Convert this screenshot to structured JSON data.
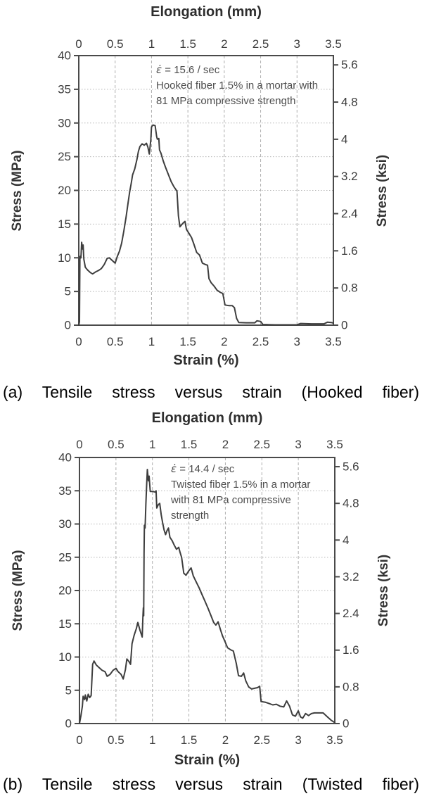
{
  "colors": {
    "background": "#ffffff",
    "curve": "#3e3e3e",
    "frame": "#4a4a4a",
    "gridline": "#b0b0b0",
    "tick_text": "#3d3d3d",
    "caption_text": "#000000"
  },
  "chart_data": [
    {
      "type": "line",
      "top_axis_title": "Elongation (mm)",
      "xlabel": "Strain (%)",
      "ylabel_left": "Stress (MPa)",
      "ylabel_right": "Stress (ksi)",
      "x_range": [
        0,
        3.5
      ],
      "y_range_mpa": [
        0,
        40
      ],
      "mpa_per_ksi": 6.8966,
      "grid": true,
      "x_tick_values": [
        0,
        0.5,
        1,
        1.5,
        2,
        2.5,
        3,
        3.5
      ],
      "x_tick_labels": [
        "0",
        "0.5",
        "1",
        "1.5",
        "2",
        "2.5",
        "3",
        "3.5"
      ],
      "y_tick_values_mpa": [
        0,
        5,
        10,
        15,
        20,
        25,
        30,
        35,
        40
      ],
      "y_tick_labels_mpa": [
        "0",
        "5",
        "10",
        "15",
        "20",
        "25",
        "30",
        "35",
        "40"
      ],
      "y_tick_values_ksi": [
        0,
        0.8,
        1.6,
        2.4,
        3.2,
        4,
        4.8,
        5.6
      ],
      "y_tick_labels_ksi": [
        "0",
        "0.8",
        "1.6",
        "2.4",
        "3.2",
        "4",
        "4.8",
        "5.6"
      ],
      "annotation": {
        "symbol": "ε̇",
        "rate": " = 15.6 / sec",
        "l1": "Hooked fiber 1.5% in a mortar with",
        "l2": "81 MPa compressive strength",
        "l3": ""
      },
      "caption": "(a) Tensile stress versus strain (Hooked fiber)",
      "series": [
        {
          "name": "hooked-fiber-stress-strain",
          "points": [
            [
              0,
              0
            ],
            [
              0.01,
              0.5
            ],
            [
              0.015,
              9.8
            ],
            [
              0.02,
              10.2
            ],
            [
              0.03,
              10
            ],
            [
              0.04,
              12.3
            ],
            [
              0.05,
              11.3
            ],
            [
              0.06,
              11.9
            ],
            [
              0.07,
              9.8
            ],
            [
              0.09,
              8.6
            ],
            [
              0.12,
              8.2
            ],
            [
              0.16,
              7.8
            ],
            [
              0.19,
              7.6
            ],
            [
              0.23,
              7.9
            ],
            [
              0.27,
              8.1
            ],
            [
              0.31,
              8.4
            ],
            [
              0.35,
              9
            ],
            [
              0.39,
              9.9
            ],
            [
              0.42,
              10
            ],
            [
              0.46,
              9.6
            ],
            [
              0.5,
              9.2
            ],
            [
              0.53,
              10.2
            ],
            [
              0.56,
              11
            ],
            [
              0.59,
              12.2
            ],
            [
              0.62,
              14
            ],
            [
              0.65,
              16
            ],
            [
              0.68,
              18.3
            ],
            [
              0.7,
              19.8
            ],
            [
              0.72,
              21
            ],
            [
              0.74,
              22.3
            ],
            [
              0.77,
              23.2
            ],
            [
              0.8,
              24.6
            ],
            [
              0.82,
              25.8
            ],
            [
              0.84,
              26.5
            ],
            [
              0.87,
              26.9
            ],
            [
              0.9,
              26.7
            ],
            [
              0.93,
              27
            ],
            [
              0.95,
              26.4
            ],
            [
              0.97,
              25.4
            ],
            [
              0.99,
              27.5
            ],
            [
              1.0,
              29.4
            ],
            [
              1.02,
              29.7
            ],
            [
              1.05,
              29.6
            ],
            [
              1.07,
              28
            ],
            [
              1.08,
              27.6
            ],
            [
              1.1,
              27.7
            ],
            [
              1.11,
              26
            ],
            [
              1.13,
              25.5
            ],
            [
              1.16,
              24.4
            ],
            [
              1.19,
              23.5
            ],
            [
              1.23,
              22.4
            ],
            [
              1.27,
              21.3
            ],
            [
              1.31,
              20.5
            ],
            [
              1.35,
              19.9
            ],
            [
              1.37,
              16.2
            ],
            [
              1.39,
              14.6
            ],
            [
              1.43,
              15.1
            ],
            [
              1.46,
              15.4
            ],
            [
              1.48,
              14.2
            ],
            [
              1.51,
              13.7
            ],
            [
              1.55,
              13
            ],
            [
              1.58,
              12.1
            ],
            [
              1.62,
              10.8
            ],
            [
              1.66,
              10.4
            ],
            [
              1.7,
              9.2
            ],
            [
              1.74,
              9
            ],
            [
              1.77,
              8.9
            ],
            [
              1.79,
              6.9
            ],
            [
              1.82,
              6.3
            ],
            [
              1.86,
              5.8
            ],
            [
              1.9,
              5.2
            ],
            [
              1.94,
              4.9
            ],
            [
              1.98,
              4.7
            ],
            [
              2.01,
              3
            ],
            [
              2.06,
              2.9
            ],
            [
              2.11,
              2.9
            ],
            [
              2.14,
              2.6
            ],
            [
              2.17,
              1
            ],
            [
              2.2,
              0.4
            ],
            [
              2.3,
              0.35
            ],
            [
              2.42,
              0.35
            ],
            [
              2.45,
              0.65
            ],
            [
              2.5,
              0.55
            ],
            [
              2.53,
              0.1
            ],
            [
              2.7,
              0.05
            ],
            [
              3.0,
              0.05
            ],
            [
              3.05,
              0.25
            ],
            [
              3.2,
              0.2
            ],
            [
              3.37,
              0.2
            ],
            [
              3.42,
              0.45
            ],
            [
              3.47,
              0.4
            ],
            [
              3.5,
              0.3
            ]
          ]
        }
      ]
    },
    {
      "type": "line",
      "top_axis_title": "Elongation (mm)",
      "xlabel": "Strain (%)",
      "ylabel_left": "Stress (MPa)",
      "ylabel_right": "Stress (ksi)",
      "x_range": [
        0,
        3.5
      ],
      "y_range_mpa": [
        0,
        40
      ],
      "mpa_per_ksi": 6.8966,
      "grid": true,
      "x_tick_values": [
        0,
        0.5,
        1,
        1.5,
        2,
        2.5,
        3,
        3.5
      ],
      "x_tick_labels": [
        "0",
        "0.5",
        "1",
        "1.5",
        "2",
        "2.5",
        "3",
        "3.5"
      ],
      "y_tick_values_mpa": [
        0,
        5,
        10,
        15,
        20,
        25,
        30,
        35,
        40
      ],
      "y_tick_labels_mpa": [
        "0",
        "5",
        "10",
        "15",
        "20",
        "25",
        "30",
        "35",
        "40"
      ],
      "y_tick_values_ksi": [
        0,
        0.8,
        1.6,
        2.4,
        3.2,
        4,
        4.8,
        5.6
      ],
      "y_tick_labels_ksi": [
        "0",
        "0.8",
        "1.6",
        "2.4",
        "3.2",
        "4",
        "4.8",
        "5.6"
      ],
      "annotation": {
        "symbol": "ε̇",
        "rate": " = 14.4 / sec",
        "l1": "Twisted fiber 1.5% in a mortar",
        "l2": "with 81 MPa compressive",
        "l3": "strength"
      },
      "caption": "(b) Tensile stress versus strain (Twisted fiber)",
      "series": [
        {
          "name": "twisted-fiber-stress-strain",
          "points": [
            [
              0,
              0
            ],
            [
              0.02,
              1.2
            ],
            [
              0.04,
              2.6
            ],
            [
              0.05,
              4.1
            ],
            [
              0.07,
              3.6
            ],
            [
              0.08,
              4.3
            ],
            [
              0.1,
              3.4
            ],
            [
              0.12,
              4.4
            ],
            [
              0.14,
              3.9
            ],
            [
              0.16,
              4.2
            ],
            [
              0.18,
              8.9
            ],
            [
              0.2,
              9.4
            ],
            [
              0.23,
              8.8
            ],
            [
              0.27,
              8.4
            ],
            [
              0.31,
              8
            ],
            [
              0.35,
              7.8
            ],
            [
              0.38,
              7.1
            ],
            [
              0.42,
              7.4
            ],
            [
              0.46,
              8
            ],
            [
              0.5,
              8.3
            ],
            [
              0.53,
              7.8
            ],
            [
              0.57,
              7.4
            ],
            [
              0.6,
              6.7
            ],
            [
              0.63,
              8.1
            ],
            [
              0.65,
              9.7
            ],
            [
              0.68,
              9.3
            ],
            [
              0.7,
              8.9
            ],
            [
              0.72,
              12
            ],
            [
              0.75,
              13.3
            ],
            [
              0.78,
              14.3
            ],
            [
              0.8,
              15.2
            ],
            [
              0.83,
              14
            ],
            [
              0.86,
              13
            ],
            [
              0.87,
              16.1
            ],
            [
              0.875,
              17.4
            ],
            [
              0.88,
              16.2
            ],
            [
              0.885,
              25.5
            ],
            [
              0.89,
              29.8
            ],
            [
              0.9,
              29.4
            ],
            [
              0.91,
              33
            ],
            [
              0.92,
              35.6
            ],
            [
              0.93,
              38.2
            ],
            [
              0.945,
              36.5
            ],
            [
              0.955,
              37.2
            ],
            [
              0.97,
              34.9
            ],
            [
              1.0,
              34.9
            ],
            [
              1.04,
              34.8
            ],
            [
              1.05,
              35
            ],
            [
              1.06,
              32.4
            ],
            [
              1.08,
              32.9
            ],
            [
              1.1,
              33.1
            ],
            [
              1.12,
              31.4
            ],
            [
              1.14,
              30.2
            ],
            [
              1.16,
              29.1
            ],
            [
              1.18,
              28.4
            ],
            [
              1.2,
              29
            ],
            [
              1.22,
              29.4
            ],
            [
              1.24,
              28
            ],
            [
              1.27,
              27.5
            ],
            [
              1.3,
              26.8
            ],
            [
              1.33,
              26.2
            ],
            [
              1.36,
              26.5
            ],
            [
              1.38,
              25.7
            ],
            [
              1.4,
              25
            ],
            [
              1.43,
              22.6
            ],
            [
              1.46,
              22.3
            ],
            [
              1.5,
              23
            ],
            [
              1.53,
              23.4
            ],
            [
              1.56,
              22.2
            ],
            [
              1.6,
              21.3
            ],
            [
              1.64,
              20.4
            ],
            [
              1.68,
              19.4
            ],
            [
              1.72,
              18.4
            ],
            [
              1.76,
              17.4
            ],
            [
              1.8,
              16.3
            ],
            [
              1.84,
              15.2
            ],
            [
              1.87,
              14.8
            ],
            [
              1.9,
              15.3
            ],
            [
              1.93,
              14.2
            ],
            [
              1.96,
              13.2
            ],
            [
              2.0,
              12.2
            ],
            [
              2.03,
              11.4
            ],
            [
              2.07,
              11.1
            ],
            [
              2.11,
              10.9
            ],
            [
              2.15,
              9
            ],
            [
              2.18,
              7.2
            ],
            [
              2.22,
              7.1
            ],
            [
              2.25,
              7.6
            ],
            [
              2.28,
              6.4
            ],
            [
              2.32,
              5.5
            ],
            [
              2.36,
              5.2
            ],
            [
              2.4,
              5.3
            ],
            [
              2.44,
              5.4
            ],
            [
              2.47,
              5.6
            ],
            [
              2.49,
              3.3
            ],
            [
              2.55,
              3.2
            ],
            [
              2.6,
              3
            ],
            [
              2.65,
              2.8
            ],
            [
              2.7,
              2.9
            ],
            [
              2.75,
              2.6
            ],
            [
              2.8,
              2.5
            ],
            [
              2.84,
              3.4
            ],
            [
              2.88,
              2.6
            ],
            [
              2.92,
              1.3
            ],
            [
              2.96,
              1.1
            ],
            [
              3.0,
              1.9
            ],
            [
              3.03,
              1
            ],
            [
              3.06,
              0.8
            ],
            [
              3.1,
              1.5
            ],
            [
              3.14,
              1.2
            ],
            [
              3.18,
              1.5
            ],
            [
              3.22,
              1.6
            ],
            [
              3.28,
              1.6
            ],
            [
              3.34,
              1.6
            ],
            [
              3.4,
              1
            ],
            [
              3.45,
              0.5
            ],
            [
              3.5,
              0.15
            ]
          ]
        }
      ]
    }
  ]
}
